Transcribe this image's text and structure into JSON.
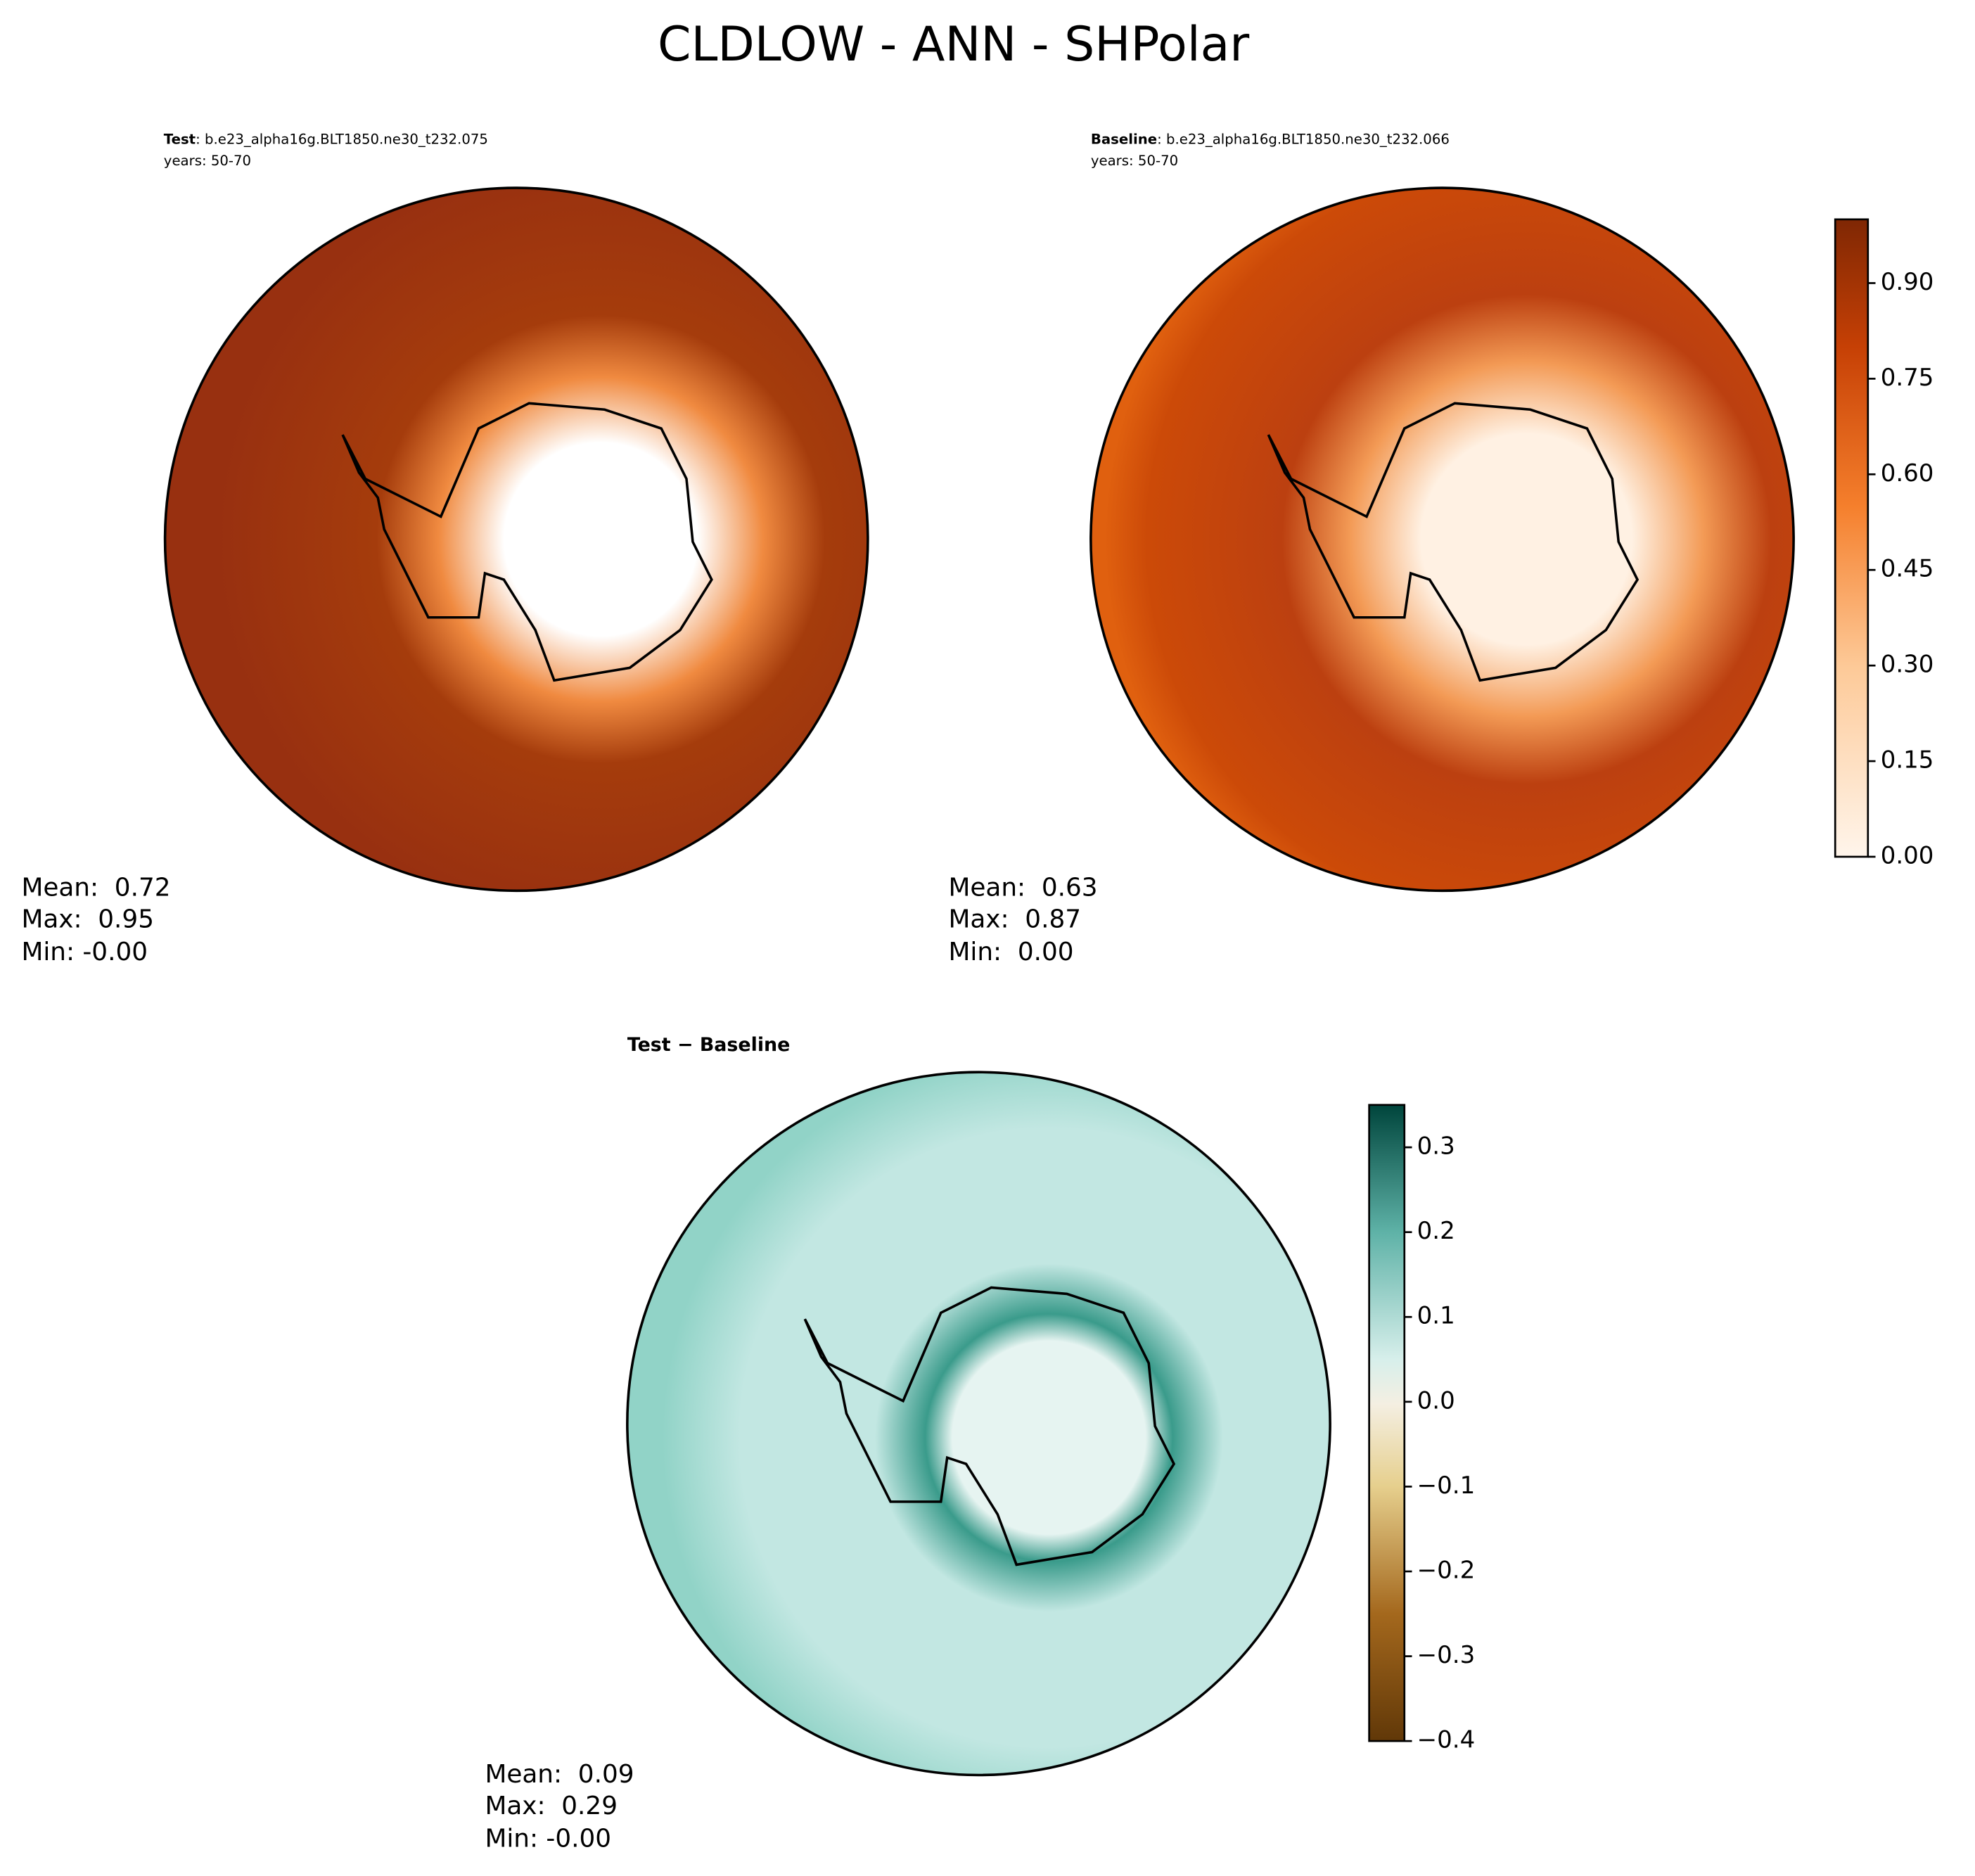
{
  "title": "CLDLOW - ANN - SHPolar",
  "panels": [
    {
      "label_bold": "Test",
      "label_rest": ": b.e23_alpha16g.BLT1850.ne30_t232.075",
      "years": "years: 50-70",
      "stats": [
        "Mean:  0.72",
        "Max:  0.95",
        "Min: -0.00"
      ]
    },
    {
      "label_bold": "Baseline",
      "label_rest": ": b.e23_alpha16g.BLT1850.ne30_t232.066",
      "years": "years: 50-70",
      "stats": [
        "Mean:  0.63",
        "Max:  0.87",
        "Min:  0.00"
      ]
    },
    {
      "label_bold": "Test − Baseline",
      "stats": [
        "Mean:  0.09",
        "Max:  0.29",
        "Min: -0.00"
      ]
    }
  ],
  "colorbars": [
    {
      "range": [
        0,
        1.0
      ],
      "ticks": [
        {
          "value": 0,
          "label": "0.00"
        },
        {
          "value": 0.15,
          "label": "0.15"
        },
        {
          "value": 0.3,
          "label": "0.30"
        },
        {
          "value": 0.45,
          "label": "0.45"
        },
        {
          "value": 0.6,
          "label": "0.60"
        },
        {
          "value": 0.75,
          "label": "0.75"
        },
        {
          "value": 0.9,
          "label": "0.90"
        }
      ]
    },
    {
      "range": [
        -0.4,
        0.35
      ],
      "ticks": [
        {
          "value": -0.4,
          "label": "−0.4"
        },
        {
          "value": -0.3,
          "label": "−0.3"
        },
        {
          "value": -0.2,
          "label": "−0.2"
        },
        {
          "value": -0.1,
          "label": "−0.1"
        },
        {
          "value": 0,
          "label": "0.0"
        },
        {
          "value": 0.1,
          "label": "0.1"
        },
        {
          "value": 0.2,
          "label": "0.2"
        },
        {
          "value": 0.3,
          "label": "0.3"
        }
      ]
    }
  ]
}
